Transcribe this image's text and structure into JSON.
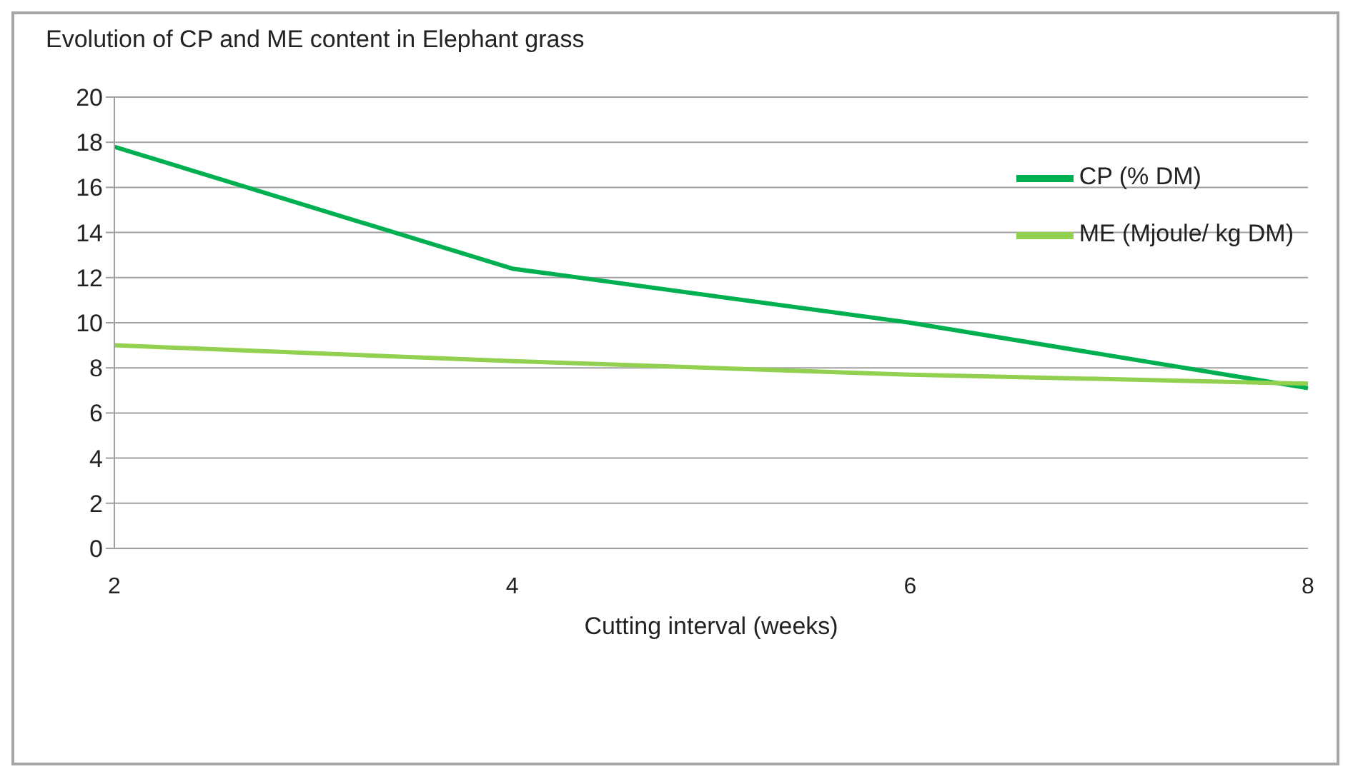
{
  "chart_data": {
    "type": "line",
    "title": "Evolution of CP and ME content in Elephant grass",
    "xlabel": "Cutting interval (weeks)",
    "categories": [
      "2",
      "4",
      "6",
      "8"
    ],
    "series": [
      {
        "name": "CP (% DM)",
        "color": "#00b050",
        "values": [
          17.8,
          12.4,
          10.0,
          7.1
        ]
      },
      {
        "name": "ME (Mjoule/ kg DM)",
        "color": "#92d050",
        "values": [
          9.0,
          8.3,
          7.7,
          7.3
        ]
      }
    ],
    "ylim": [
      0,
      20
    ],
    "yticks": [
      0,
      2,
      4,
      6,
      8,
      10,
      12,
      14,
      16,
      18,
      20
    ],
    "grid": "y",
    "legend": "top right",
    "marker": "none",
    "line_style": "solid"
  }
}
